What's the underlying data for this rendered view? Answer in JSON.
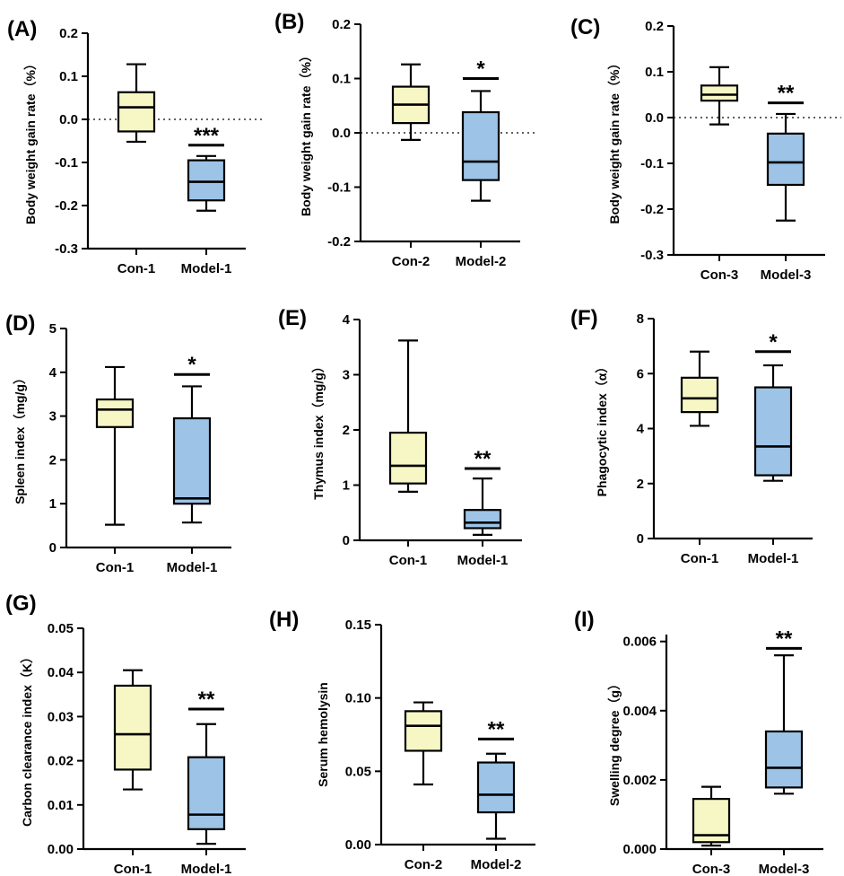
{
  "colors": {
    "control": "#f7f7c6",
    "model": "#9dc3e6",
    "stroke": "#000000"
  },
  "chart_data": [
    {
      "type": "box",
      "panel_label": "(A)",
      "ylabel": "Body weight gain rate（%）",
      "ylim": [
        -0.3,
        0.2
      ],
      "yticks": [
        "0.2",
        "0.1",
        "0.0",
        "-0.1",
        "-0.2",
        "-0.3"
      ],
      "ytick_values": [
        0.2,
        0.1,
        0.0,
        -0.1,
        -0.2,
        -0.3
      ],
      "zero_line": true,
      "groups": [
        {
          "name": "Con-1",
          "min": -0.052,
          "q1": -0.028,
          "median": 0.028,
          "q3": 0.063,
          "max": 0.128
        },
        {
          "name": "Model-1",
          "min": -0.212,
          "q1": -0.188,
          "median": -0.145,
          "q3": -0.095,
          "max": -0.085
        }
      ],
      "significance": "***",
      "sig_value": -0.06
    },
    {
      "type": "box",
      "panel_label": "(B)",
      "ylabel": "Body weight gain rate（%）",
      "ylim": [
        -0.2,
        0.2
      ],
      "yticks": [
        "0.2",
        "0.1",
        "0.0",
        "-0.1",
        "-0.2"
      ],
      "ytick_values": [
        0.2,
        0.1,
        0.0,
        -0.1,
        -0.2
      ],
      "zero_line": true,
      "groups": [
        {
          "name": "Con-2",
          "min": -0.013,
          "q1": 0.018,
          "median": 0.052,
          "q3": 0.085,
          "max": 0.126
        },
        {
          "name": "Model-2",
          "min": -0.125,
          "q1": -0.087,
          "median": -0.053,
          "q3": 0.038,
          "max": 0.077
        }
      ],
      "significance": "*",
      "sig_value": 0.1
    },
    {
      "type": "box",
      "panel_label": "(C)",
      "ylabel": "Body weight gain rate（%）",
      "ylim": [
        -0.3,
        0.2
      ],
      "yticks": [
        "0.2",
        "0.1",
        "0.0",
        "-0.1",
        "-0.2",
        "-0.3"
      ],
      "ytick_values": [
        0.2,
        0.1,
        0.0,
        -0.1,
        -0.2,
        -0.3
      ],
      "zero_line": true,
      "groups": [
        {
          "name": "Con-3",
          "min": -0.015,
          "q1": 0.037,
          "median": 0.05,
          "q3": 0.07,
          "max": 0.11
        },
        {
          "name": "Model-3",
          "min": -0.225,
          "q1": -0.147,
          "median": -0.098,
          "q3": -0.035,
          "max": 0.008
        }
      ],
      "significance": "**",
      "sig_value": 0.032
    },
    {
      "type": "box",
      "panel_label": "(D)",
      "ylabel": "Spleen index（mg/g）",
      "ylim": [
        0,
        5
      ],
      "yticks": [
        "0",
        "1",
        "2",
        "3",
        "4",
        "5"
      ],
      "ytick_values": [
        0,
        1,
        2,
        3,
        4,
        5
      ],
      "zero_line": false,
      "groups": [
        {
          "name": "Con-1",
          "min": 0.52,
          "q1": 2.75,
          "median": 3.15,
          "q3": 3.38,
          "max": 4.12
        },
        {
          "name": "Model-1",
          "min": 0.57,
          "q1": 1.0,
          "median": 1.12,
          "q3": 2.95,
          "max": 3.68
        }
      ],
      "significance": "*",
      "sig_value": 3.95
    },
    {
      "type": "box",
      "panel_label": "(E)",
      "ylabel": "Thymus index（mg/g）",
      "ylim": [
        0,
        4
      ],
      "yticks": [
        "0",
        "1",
        "2",
        "3",
        "4"
      ],
      "ytick_values": [
        0,
        1,
        2,
        3,
        4
      ],
      "zero_line": false,
      "groups": [
        {
          "name": "Con-1",
          "min": 0.88,
          "q1": 1.03,
          "median": 1.35,
          "q3": 1.95,
          "max": 3.62
        },
        {
          "name": "Model-1",
          "min": 0.1,
          "q1": 0.22,
          "median": 0.32,
          "q3": 0.55,
          "max": 1.12
        }
      ],
      "significance": "**",
      "sig_value": 1.3
    },
    {
      "type": "box",
      "panel_label": "(F)",
      "ylabel": "Phagocytic index（α）",
      "ylim": [
        0,
        8
      ],
      "yticks": [
        "0",
        "2",
        "4",
        "6",
        "8"
      ],
      "ytick_values": [
        0,
        2,
        4,
        6,
        8
      ],
      "zero_line": false,
      "groups": [
        {
          "name": "Con-1",
          "min": 4.1,
          "q1": 4.6,
          "median": 5.1,
          "q3": 5.85,
          "max": 6.8
        },
        {
          "name": "Model-1",
          "min": 2.1,
          "q1": 2.3,
          "median": 3.35,
          "q3": 5.5,
          "max": 6.3
        }
      ],
      "significance": "*",
      "sig_value": 6.8
    },
    {
      "type": "box",
      "panel_label": "(G)",
      "ylabel": "Carbon clearance index（K）",
      "ylim": [
        0,
        0.05
      ],
      "yticks": [
        "0.00",
        "0.01",
        "0.02",
        "0.03",
        "0.04",
        "0.05"
      ],
      "ytick_values": [
        0,
        0.01,
        0.02,
        0.03,
        0.04,
        0.05
      ],
      "zero_line": false,
      "groups": [
        {
          "name": "Con-1",
          "min": 0.0135,
          "q1": 0.018,
          "median": 0.026,
          "q3": 0.037,
          "max": 0.0405
        },
        {
          "name": "Model-1",
          "min": 0.0012,
          "q1": 0.0045,
          "median": 0.0078,
          "q3": 0.0208,
          "max": 0.0283
        }
      ],
      "significance": "**",
      "sig_value": 0.0317
    },
    {
      "type": "box",
      "panel_label": "(H)",
      "ylabel": "Serum hemolysin",
      "ylim": [
        0,
        0.15
      ],
      "yticks": [
        "0.00",
        "0.05",
        "0.10",
        "0.15"
      ],
      "ytick_values": [
        0,
        0.05,
        0.1,
        0.15
      ],
      "zero_line": false,
      "groups": [
        {
          "name": "Con-2",
          "min": 0.041,
          "q1": 0.064,
          "median": 0.081,
          "q3": 0.091,
          "max": 0.097
        },
        {
          "name": "Model-2",
          "min": 0.004,
          "q1": 0.022,
          "median": 0.034,
          "q3": 0.056,
          "max": 0.062
        }
      ],
      "significance": "**",
      "sig_value": 0.072
    },
    {
      "type": "box",
      "panel_label": "(I)",
      "ylabel": "Swelling degree（g）",
      "ylim": [
        0,
        0.0062
      ],
      "yticks": [
        "0.000",
        "0.002",
        "0.004",
        "0.006"
      ],
      "ytick_values": [
        0,
        0.002,
        0.004,
        0.006
      ],
      "zero_line": false,
      "groups": [
        {
          "name": "Con-3",
          "min": 0.0001,
          "q1": 0.0002,
          "median": 0.0004,
          "q3": 0.00145,
          "max": 0.0018
        },
        {
          "name": "Model-3",
          "min": 0.0016,
          "q1": 0.00178,
          "median": 0.00235,
          "q3": 0.0034,
          "max": 0.0056
        }
      ],
      "significance": "**",
      "sig_value": 0.0058
    }
  ]
}
